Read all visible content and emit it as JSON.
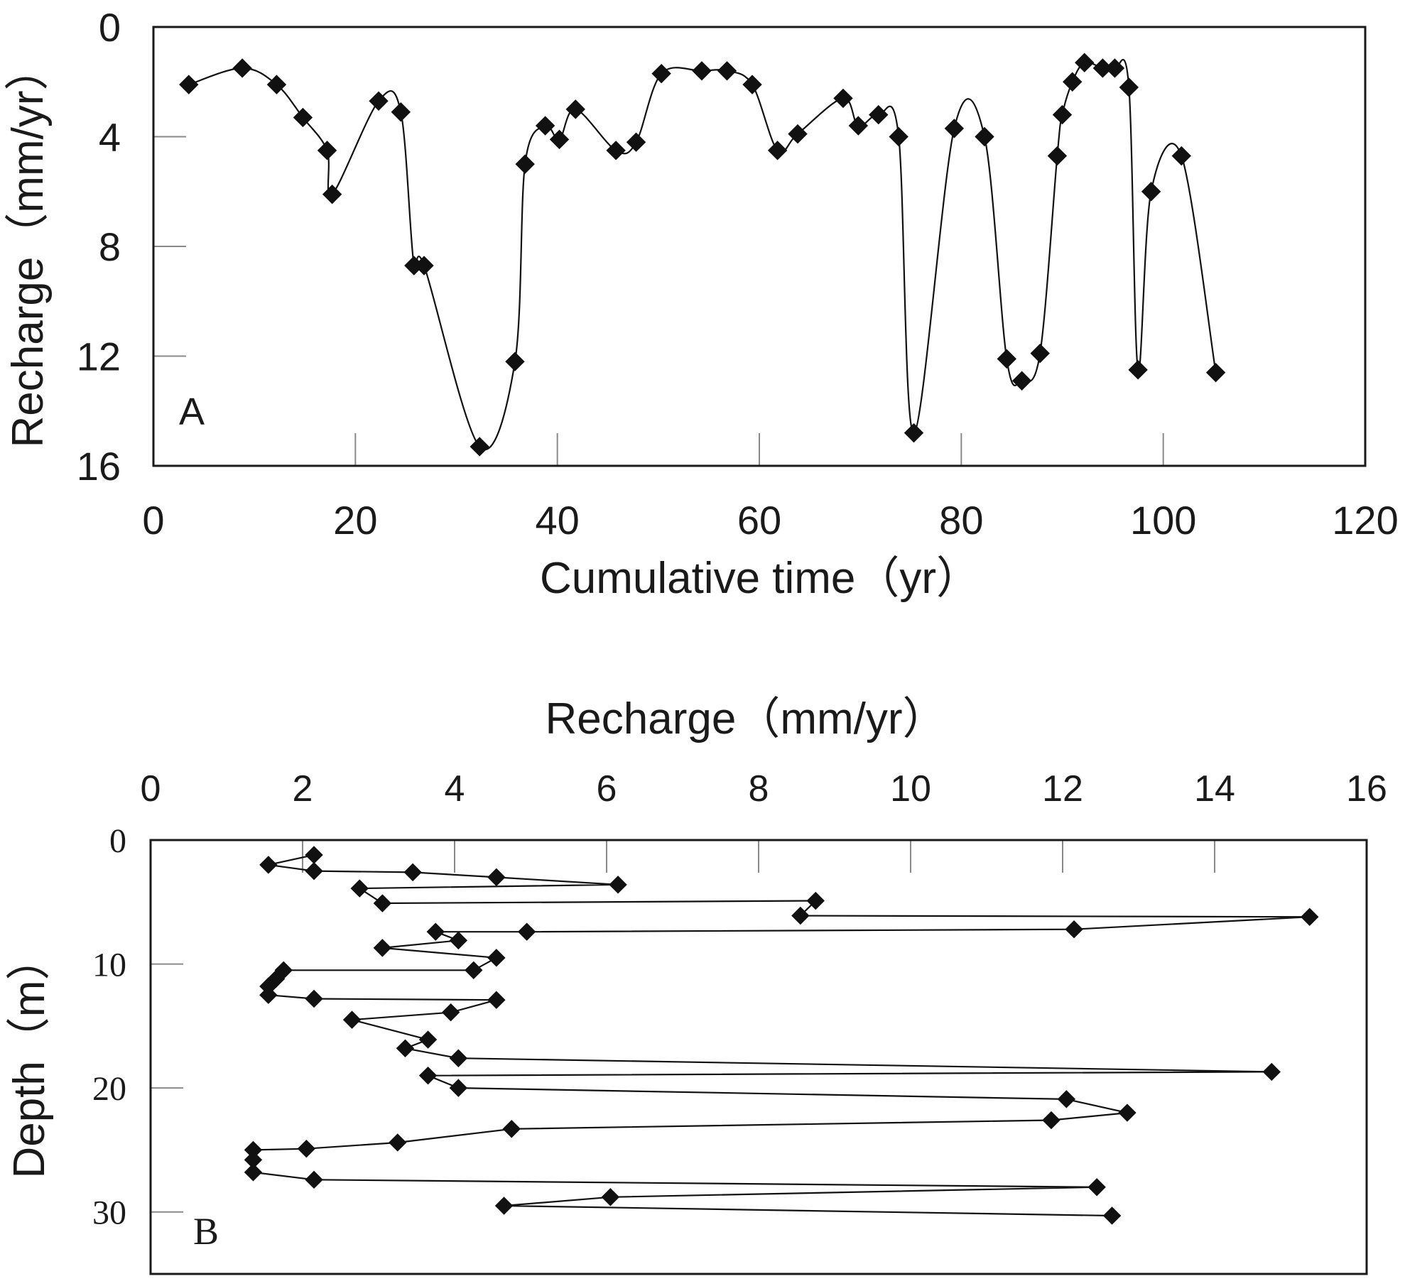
{
  "chart_data": [
    {
      "panel": "A",
      "type": "line",
      "title": "",
      "xlabel": "Cumulative time（yr）",
      "ylabel": "Recharge（mm/yr）",
      "xlim": [
        0,
        120
      ],
      "ylim": [
        0,
        16
      ],
      "y_inverted": true,
      "xticks": [
        "0",
        "20",
        "40",
        "60",
        "80",
        "100",
        "120"
      ],
      "yticks": [
        "0",
        "4",
        "8",
        "12",
        "16"
      ],
      "grid": "tick marks only",
      "smooth": true,
      "panel_label": "A",
      "x": [
        3.5,
        8.8,
        12.2,
        14.8,
        17.2,
        17.7,
        22.3,
        24.5,
        25.8,
        26.8,
        32.3,
        35.8,
        36.8,
        38.8,
        40.2,
        41.8,
        45.8,
        47.8,
        50.3,
        54.3,
        56.8,
        59.3,
        61.8,
        63.8,
        68.3,
        69.8,
        71.8,
        73.8,
        75.3,
        79.3,
        82.3,
        84.5,
        86.0,
        87.8,
        89.5,
        90.0,
        91.0,
        92.2,
        94.0,
        95.2,
        96.6,
        97.5,
        98.8,
        101.8,
        105.2
      ],
      "y": [
        2.1,
        1.5,
        2.1,
        3.3,
        4.5,
        6.1,
        2.7,
        3.1,
        8.7,
        8.7,
        15.3,
        12.2,
        5.0,
        3.6,
        4.1,
        3.0,
        4.5,
        4.2,
        1.7,
        1.6,
        1.6,
        2.1,
        4.5,
        3.9,
        2.6,
        3.6,
        3.2,
        4.0,
        14.8,
        3.7,
        4.0,
        12.1,
        12.9,
        11.9,
        4.7,
        3.2,
        2.0,
        1.3,
        1.5,
        1.5,
        2.2,
        12.5,
        6.0,
        4.7,
        12.6
      ]
    },
    {
      "panel": "B",
      "type": "line",
      "title": "",
      "xlabel": "Recharge（mm/yr）",
      "ylabel": "Depth（m）",
      "xlim": [
        0,
        16
      ],
      "ylim": [
        0,
        35
      ],
      "y_inverted": true,
      "x_axis_position": "top",
      "xticks": [
        "0",
        "2",
        "4",
        "6",
        "8",
        "10",
        "12",
        "14",
        "16"
      ],
      "yticks": [
        "0",
        "10",
        "20",
        "30"
      ],
      "grid": "tick marks only",
      "smooth": false,
      "panel_label": "B",
      "x": [
        2.15,
        1.55,
        2.15,
        3.45,
        4.55,
        6.15,
        2.75,
        3.05,
        8.75,
        8.55,
        15.25,
        12.15,
        4.95,
        3.75,
        4.05,
        3.05,
        4.55,
        4.25,
        1.75,
        1.65,
        1.55,
        1.55,
        2.15,
        4.55,
        3.95,
        2.65,
        3.65,
        3.35,
        4.05,
        14.75,
        3.65,
        4.05,
        12.05,
        12.85,
        11.85,
        4.75,
        3.25,
        2.05,
        1.35,
        1.35,
        1.35,
        2.15,
        12.45,
        6.05,
        4.65,
        12.65
      ],
      "y": [
        1.2,
        2.0,
        2.5,
        2.6,
        3.0,
        3.6,
        3.9,
        5.1,
        4.9,
        6.1,
        6.2,
        7.2,
        7.4,
        7.4,
        8.1,
        8.7,
        9.5,
        10.5,
        10.5,
        11.2,
        11.8,
        12.5,
        12.8,
        12.9,
        13.9,
        14.5,
        16.1,
        16.8,
        17.6,
        18.7,
        19.0,
        20.0,
        20.9,
        22.0,
        22.6,
        23.3,
        24.4,
        24.9,
        25.0,
        25.8,
        26.8,
        27.4,
        28.0,
        28.8,
        29.5,
        30.3
      ]
    }
  ]
}
